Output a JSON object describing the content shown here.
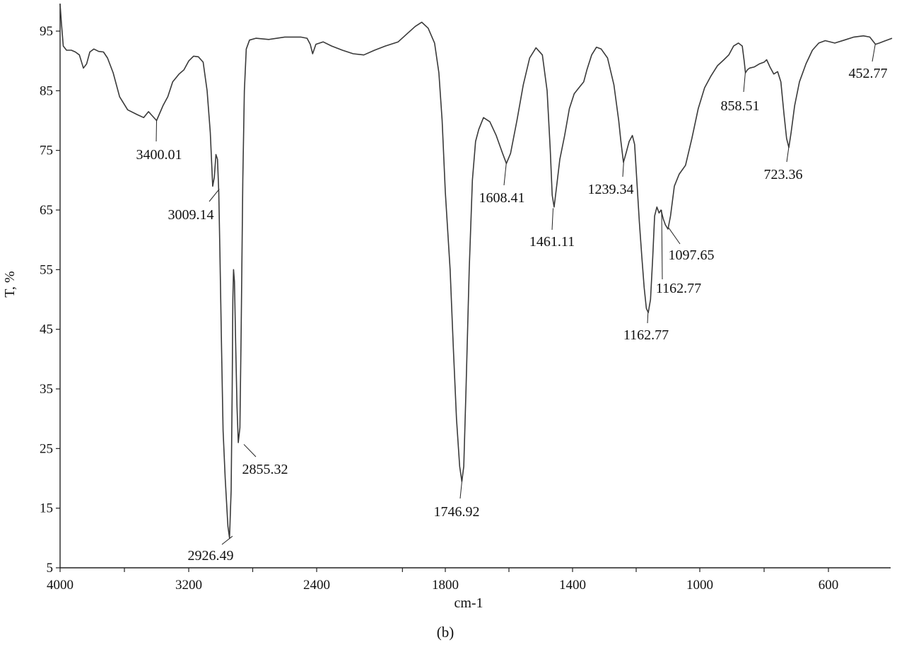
{
  "chart_data": {
    "type": "line",
    "title": "",
    "xlabel": "cm-1",
    "ylabel": "T, %",
    "caption": "(b)",
    "x_reversed": true,
    "xlim": [
      4000,
      400
    ],
    "ylim": [
      5,
      100
    ],
    "x_ticks": [
      {
        "value": 4000,
        "label": "4000"
      },
      {
        "value": 3600,
        "label": ""
      },
      {
        "value": 3200,
        "label": "3200"
      },
      {
        "value": 2800,
        "label": ""
      },
      {
        "value": 2400,
        "label": "2400"
      },
      {
        "value": 2000,
        "label": ""
      },
      {
        "value": 1800,
        "label": "1800"
      },
      {
        "value": 1600,
        "label": ""
      },
      {
        "value": 1400,
        "label": "1400"
      },
      {
        "value": 1200,
        "label": ""
      },
      {
        "value": 1000,
        "label": "1000"
      },
      {
        "value": 800,
        "label": ""
      },
      {
        "value": 600,
        "label": "600"
      }
    ],
    "y_ticks": [
      5,
      15,
      25,
      35,
      45,
      55,
      65,
      75,
      85,
      95
    ],
    "grid": false,
    "series": [
      {
        "color": "#3a3a3a",
        "points": [
          [
            4000,
            99.5
          ],
          [
            3992,
            96.5
          ],
          [
            3980,
            92.5
          ],
          [
            3960,
            91.8
          ],
          [
            3930,
            91.8
          ],
          [
            3905,
            91.5
          ],
          [
            3880,
            91.0
          ],
          [
            3855,
            88.8
          ],
          [
            3835,
            89.5
          ],
          [
            3815,
            91.5
          ],
          [
            3790,
            92.0
          ],
          [
            3760,
            91.6
          ],
          [
            3730,
            91.5
          ],
          [
            3705,
            90.5
          ],
          [
            3670,
            88.0
          ],
          [
            3630,
            84.0
          ],
          [
            3580,
            81.8
          ],
          [
            3520,
            81.0
          ],
          [
            3480,
            80.5
          ],
          [
            3450,
            81.5
          ],
          [
            3400,
            80.0
          ],
          [
            3360,
            82.5
          ],
          [
            3330,
            84.0
          ],
          [
            3300,
            86.5
          ],
          [
            3260,
            87.8
          ],
          [
            3230,
            88.5
          ],
          [
            3200,
            90.0
          ],
          [
            3170,
            90.8
          ],
          [
            3140,
            90.7
          ],
          [
            3110,
            89.8
          ],
          [
            3085,
            85.0
          ],
          [
            3065,
            78.0
          ],
          [
            3050,
            69.0
          ],
          [
            3040,
            70.5
          ],
          [
            3030,
            74.3
          ],
          [
            3020,
            73.5
          ],
          [
            3012,
            68.0
          ],
          [
            3005,
            58.0
          ],
          [
            2995,
            42.0
          ],
          [
            2985,
            28.0
          ],
          [
            2972,
            20.0
          ],
          [
            2955,
            12.0
          ],
          [
            2945,
            10.0
          ],
          [
            2935,
            18.0
          ],
          [
            2928,
            35.0
          ],
          [
            2924,
            50.0
          ],
          [
            2920,
            55.0
          ],
          [
            2914,
            53.0
          ],
          [
            2906,
            42.0
          ],
          [
            2898,
            32.0
          ],
          [
            2890,
            26.0
          ],
          [
            2880,
            28.5
          ],
          [
            2872,
            45.0
          ],
          [
            2862,
            70.0
          ],
          [
            2852,
            85.0
          ],
          [
            2840,
            92.0
          ],
          [
            2820,
            93.5
          ],
          [
            2780,
            93.8
          ],
          [
            2700,
            93.6
          ],
          [
            2600,
            94.0
          ],
          [
            2500,
            94.0
          ],
          [
            2460,
            93.8
          ],
          [
            2440,
            92.8
          ],
          [
            2425,
            91.2
          ],
          [
            2405,
            92.8
          ],
          [
            2370,
            93.2
          ],
          [
            2330,
            92.5
          ],
          [
            2280,
            91.8
          ],
          [
            2230,
            91.2
          ],
          [
            2180,
            91.0
          ],
          [
            2130,
            91.8
          ],
          [
            2080,
            92.5
          ],
          [
            2020,
            93.2
          ],
          [
            1980,
            94.5
          ],
          [
            1940,
            95.8
          ],
          [
            1910,
            96.5
          ],
          [
            1880,
            95.5
          ],
          [
            1850,
            93.0
          ],
          [
            1830,
            88.0
          ],
          [
            1815,
            80.0
          ],
          [
            1800,
            68.0
          ],
          [
            1785,
            55.0
          ],
          [
            1775,
            42.0
          ],
          [
            1765,
            30.0
          ],
          [
            1755,
            22.0
          ],
          [
            1748,
            19.5
          ],
          [
            1742,
            22.0
          ],
          [
            1735,
            35.0
          ],
          [
            1725,
            55.0
          ],
          [
            1715,
            70.0
          ],
          [
            1705,
            76.5
          ],
          [
            1695,
            78.5
          ],
          [
            1680,
            80.5
          ],
          [
            1660,
            79.8
          ],
          [
            1640,
            77.5
          ],
          [
            1620,
            74.5
          ],
          [
            1608,
            72.8
          ],
          [
            1595,
            74.5
          ],
          [
            1575,
            80.0
          ],
          [
            1555,
            86.0
          ],
          [
            1535,
            90.5
          ],
          [
            1515,
            92.2
          ],
          [
            1495,
            91.0
          ],
          [
            1480,
            85.0
          ],
          [
            1470,
            75.0
          ],
          [
            1464,
            67.5
          ],
          [
            1458,
            65.5
          ],
          [
            1450,
            69.0
          ],
          [
            1440,
            73.5
          ],
          [
            1425,
            77.5
          ],
          [
            1410,
            82.0
          ],
          [
            1395,
            84.5
          ],
          [
            1380,
            85.5
          ],
          [
            1365,
            86.5
          ],
          [
            1355,
            88.5
          ],
          [
            1340,
            91.0
          ],
          [
            1325,
            92.3
          ],
          [
            1310,
            92.0
          ],
          [
            1290,
            90.5
          ],
          [
            1270,
            86.0
          ],
          [
            1255,
            80.0
          ],
          [
            1248,
            76.5
          ],
          [
            1240,
            73.0
          ],
          [
            1232,
            74.5
          ],
          [
            1222,
            76.5
          ],
          [
            1212,
            77.5
          ],
          [
            1205,
            76.0
          ],
          [
            1198,
            70.0
          ],
          [
            1190,
            63.0
          ],
          [
            1182,
            57.0
          ],
          [
            1175,
            52.0
          ],
          [
            1168,
            48.5
          ],
          [
            1162,
            47.8
          ],
          [
            1155,
            50.0
          ],
          [
            1148,
            57.0
          ],
          [
            1142,
            64.0
          ],
          [
            1135,
            65.5
          ],
          [
            1128,
            64.5
          ],
          [
            1122,
            65.0
          ],
          [
            1115,
            63.5
          ],
          [
            1108,
            62.5
          ],
          [
            1100,
            61.8
          ],
          [
            1092,
            64.0
          ],
          [
            1080,
            69.0
          ],
          [
            1065,
            71.0
          ],
          [
            1045,
            72.5
          ],
          [
            1025,
            77.0
          ],
          [
            1005,
            82.0
          ],
          [
            985,
            85.5
          ],
          [
            965,
            87.5
          ],
          [
            945,
            89.2
          ],
          [
            925,
            90.2
          ],
          [
            910,
            91.0
          ],
          [
            895,
            92.5
          ],
          [
            880,
            93.0
          ],
          [
            868,
            92.5
          ],
          [
            862,
            90.0
          ],
          [
            858,
            88.0
          ],
          [
            852,
            88.5
          ],
          [
            845,
            88.8
          ],
          [
            830,
            89.0
          ],
          [
            815,
            89.5
          ],
          [
            800,
            89.8
          ],
          [
            792,
            90.2
          ],
          [
            782,
            89.0
          ],
          [
            770,
            87.8
          ],
          [
            758,
            88.2
          ],
          [
            748,
            86.5
          ],
          [
            738,
            81.0
          ],
          [
            730,
            77.0
          ],
          [
            723,
            75.5
          ],
          [
            716,
            78.0
          ],
          [
            705,
            82.5
          ],
          [
            690,
            86.5
          ],
          [
            670,
            89.5
          ],
          [
            650,
            91.8
          ],
          [
            630,
            93.0
          ],
          [
            610,
            93.4
          ],
          [
            580,
            93.0
          ],
          [
            550,
            93.5
          ],
          [
            520,
            94.0
          ],
          [
            490,
            94.2
          ],
          [
            470,
            94.0
          ],
          [
            458,
            93.2
          ],
          [
            452,
            92.8
          ],
          [
            440,
            93.0
          ],
          [
            425,
            93.3
          ],
          [
            400,
            93.8
          ]
        ]
      }
    ],
    "annotations": [
      {
        "x": 3400,
        "y": 80.0,
        "label": "3400.01"
      },
      {
        "x": 3009.14,
        "y": 68.5,
        "label": "3009.14"
      },
      {
        "x": 2926.49,
        "y": 10.3,
        "label": "2926.49"
      },
      {
        "x": 2855.32,
        "y": 25.7,
        "label": "2855.32"
      },
      {
        "x": 1746.92,
        "y": 20.0,
        "label": "1746.92"
      },
      {
        "x": 1608.41,
        "y": 72.8,
        "label": "1608.41"
      },
      {
        "x": 1461.11,
        "y": 65.3,
        "label": "1461.11"
      },
      {
        "x": 1239.34,
        "y": 73.0,
        "label": "1239.34"
      },
      {
        "x": 1162.77,
        "y": 47.8,
        "label": "1162.77"
      },
      {
        "x": 1120.0,
        "y": 65.0,
        "label": "1162.77"
      },
      {
        "x": 1097.65,
        "y": 62.0,
        "label": "1097.65"
      },
      {
        "x": 858.51,
        "y": 88.0,
        "label": "858.51"
      },
      {
        "x": 723.36,
        "y": 75.5,
        "label": "723.36"
      },
      {
        "x": 452.77,
        "y": 92.8,
        "label": "452.77"
      }
    ]
  }
}
